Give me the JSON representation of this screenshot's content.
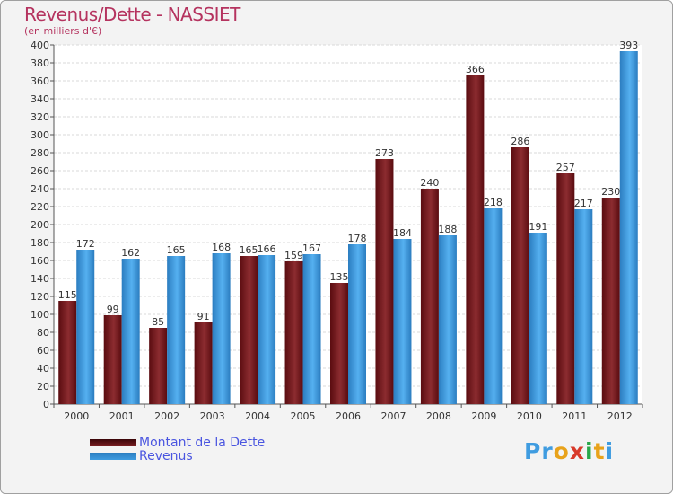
{
  "title": "Revenus/Dette - NASSIET",
  "subtitle": "(en milliers d'€)",
  "logo": "Proxiti",
  "chart_data": {
    "type": "bar",
    "categories": [
      "2000",
      "2001",
      "2002",
      "2003",
      "2004",
      "2005",
      "2006",
      "2007",
      "2008",
      "2009",
      "2010",
      "2011",
      "2012"
    ],
    "series": [
      {
        "name": "Montant de la Dette",
        "color": "#7a1f22",
        "values": [
          115,
          99,
          85,
          91,
          165,
          159,
          135,
          273,
          240,
          366,
          286,
          257,
          230
        ]
      },
      {
        "name": "Revenus",
        "color": "#3f9ce0",
        "values": [
          172,
          162,
          165,
          168,
          166,
          167,
          178,
          184,
          188,
          218,
          191,
          217,
          393
        ]
      }
    ],
    "ylim": [
      0,
      400
    ],
    "yticks": [
      0,
      20,
      40,
      60,
      80,
      100,
      120,
      140,
      160,
      180,
      200,
      220,
      240,
      260,
      280,
      300,
      320,
      340,
      360,
      380,
      400
    ],
    "grid": true,
    "legend": "bottom-left"
  }
}
